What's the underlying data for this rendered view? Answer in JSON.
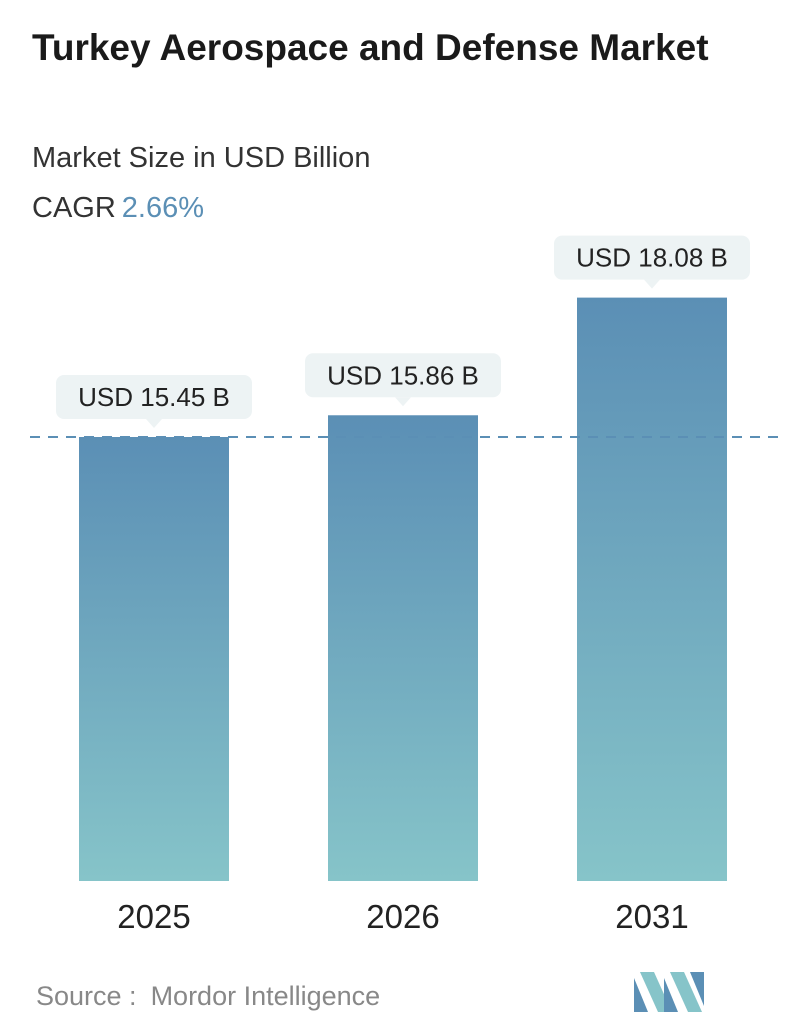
{
  "title": "Turkey Aerospace and Defense Market",
  "subtitle": "Market Size in USD Billion",
  "cagr": {
    "label": "CAGR",
    "value": "2.66%"
  },
  "source": {
    "label": "Source :",
    "name": "Mordor Intelligence"
  },
  "colors": {
    "bar_top": "#5b8fb5",
    "bar_bottom": "#86c4c9",
    "callout_bg": "#edf3f4",
    "dashed_line": "#5b8fb5",
    "cagr_accent": "#5b8fb5"
  },
  "chart_data": {
    "type": "bar",
    "categories": [
      "2025",
      "2026",
      "2031"
    ],
    "values": [
      15.45,
      15.86,
      18.08
    ],
    "data_labels": [
      "USD 15.45 B",
      "USD 15.86 B",
      "USD 18.08 B"
    ],
    "unit": "USD Billion",
    "reference_line": 15.45,
    "grid": false,
    "legend": false
  }
}
